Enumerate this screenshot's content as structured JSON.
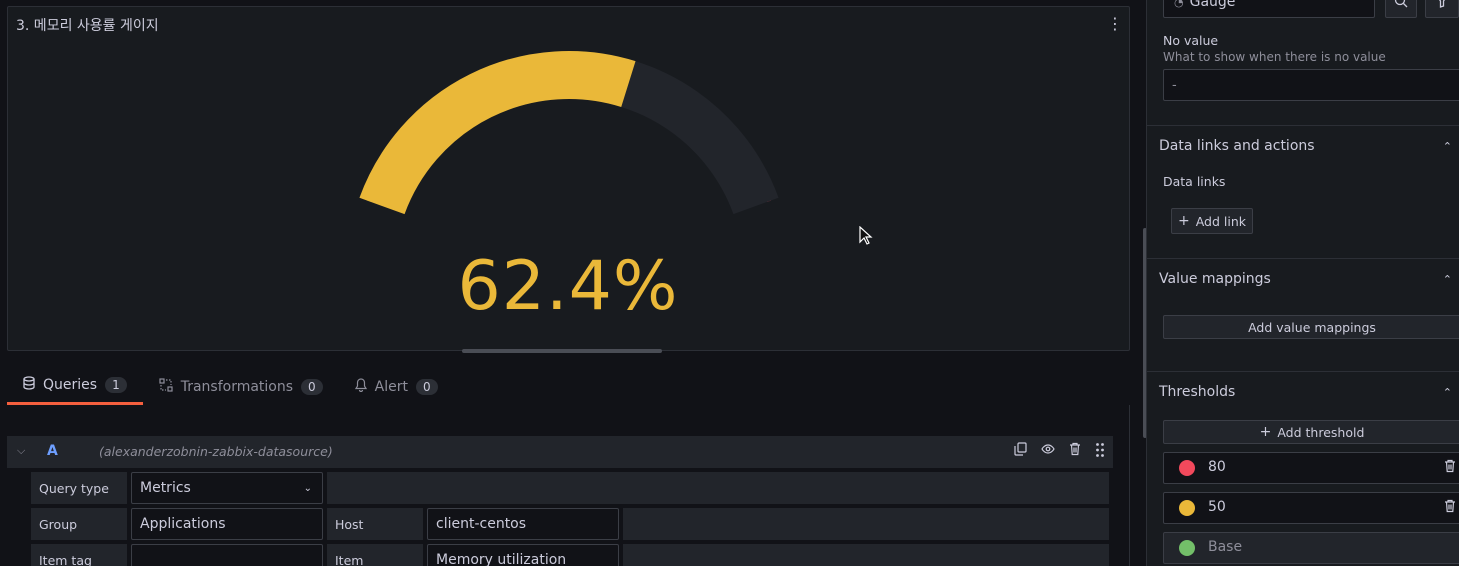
{
  "panel": {
    "title": "3. 메모리 사용률 게이지",
    "menu_icon": "⋮",
    "gauge": {
      "display_value": "62.4%",
      "value": 62.4,
      "min": 0,
      "max": 100,
      "thresholds": [
        {
          "from": 0,
          "color": "#73bf69"
        },
        {
          "from": 50,
          "color": "#eab839"
        },
        {
          "from": 80,
          "color": "#f2495c"
        }
      ],
      "value_color": "#eab839",
      "track_color": "#22252b"
    }
  },
  "tabs": [
    {
      "label": "Queries",
      "count": "1",
      "icon": "database-icon"
    },
    {
      "label": "Transformations",
      "count": "0",
      "icon": "transform-icon"
    },
    {
      "label": "Alert",
      "count": "0",
      "icon": "bell-icon"
    }
  ],
  "query": {
    "letter": "A",
    "datasource": "(alexanderzobnin-zabbix-datasource)",
    "query_type_label": "Query type",
    "query_type_value": "Metrics",
    "group_label": "Group",
    "group_value": "Applications",
    "host_label": "Host",
    "host_value": "client-centos",
    "item_tag_label": "Item tag",
    "item_tag_value": "",
    "item_label": "Item",
    "item_value": "Memory utilization"
  },
  "sidebar": {
    "viz_picker": "Gauge",
    "no_value": {
      "title": "No value",
      "desc": "What to show when there is no value",
      "placeholder": "-"
    },
    "data_links": {
      "title": "Data links and actions",
      "sub": "Data links",
      "add_label": "Add link"
    },
    "value_mappings": {
      "title": "Value mappings",
      "add_label": "Add value mappings"
    },
    "thresholds": {
      "title": "Thresholds",
      "add_label": "Add threshold",
      "items": [
        {
          "value": "80",
          "color": "#f2495c"
        },
        {
          "value": "50",
          "color": "#eab839"
        },
        {
          "value": "Base",
          "color": "#73bf69"
        }
      ]
    }
  }
}
